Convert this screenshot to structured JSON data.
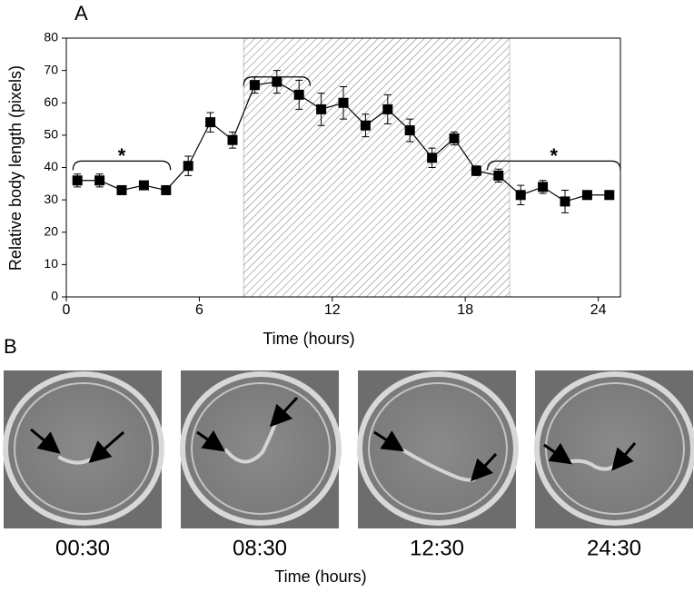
{
  "chart_data": {
    "type": "line",
    "panel_label": "A",
    "x_label": "Time (hours)",
    "y_label": "Relative body length (pixels)",
    "x": [
      0.5,
      1.5,
      2.5,
      3.5,
      4.5,
      5.5,
      6.5,
      7.5,
      8.5,
      9.5,
      10.5,
      11.5,
      12.5,
      13.5,
      14.5,
      15.5,
      16.5,
      17.5,
      18.5,
      19.5,
      20.5,
      21.5,
      22.5,
      23.5,
      24.5
    ],
    "series": [
      {
        "color": "#000000",
        "values": [
          36,
          36,
          33,
          34.5,
          33,
          40.5,
          54,
          48.5,
          65.5,
          66.5,
          62.5,
          58,
          60,
          53,
          58,
          51.5,
          43,
          49,
          39,
          37.5,
          31.5,
          34,
          29.5,
          31.5,
          31.5
        ],
        "errors": [
          2,
          2,
          1,
          1,
          1,
          3,
          3,
          2.5,
          2.5,
          3.5,
          4.5,
          5,
          5,
          3.5,
          4.5,
          3.5,
          3,
          2,
          1.5,
          2,
          3,
          2,
          3.5,
          0.5,
          0.5
        ]
      }
    ],
    "xlim": [
      0,
      25
    ],
    "xticks": [
      0,
      6,
      12,
      18,
      24
    ],
    "ylim": [
      0,
      80
    ],
    "yticks": [
      0,
      10,
      20,
      30,
      40,
      50,
      60,
      70,
      80
    ],
    "shaded": [
      8,
      20
    ],
    "brackets": [
      {
        "x": [
          0.3,
          4.7
        ],
        "y": 42,
        "label": "*"
      },
      {
        "x": [
          8,
          11
        ],
        "y": 68
      },
      {
        "x": [
          19,
          25
        ],
        "y": 42,
        "label": "*"
      }
    ]
  },
  "panel_b": {
    "label": "B",
    "frames": [
      {
        "caption": "00:30"
      },
      {
        "caption": "08:30"
      },
      {
        "caption": "12:30"
      },
      {
        "caption": "24:30"
      }
    ],
    "axis_label": "Time (hours)"
  }
}
